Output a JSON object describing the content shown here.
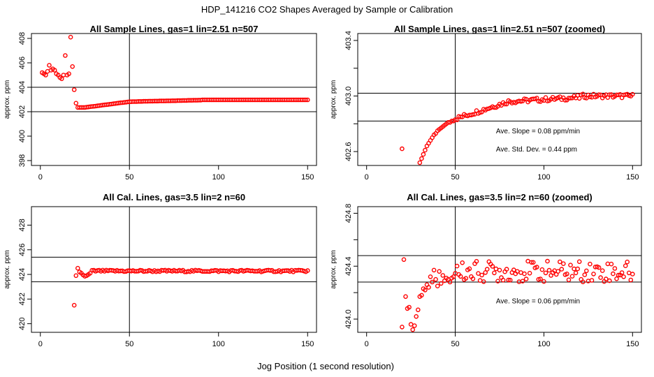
{
  "figure": {
    "title": "HDP_141216  CO2 Shapes Averaged by Sample or Calibration",
    "xlabel": "Jog Position (1 second resolution)"
  },
  "colors": {
    "points": "#ff0000",
    "lines": "#000000",
    "background": "#ffffff"
  },
  "chart_data": [
    {
      "type": "scatter",
      "title": "All Sample Lines, gas=1 lin=2.51 n=507",
      "ylabel": "approx. ppm",
      "xlim": [
        -5,
        155
      ],
      "ylim": [
        397.6,
        408.4
      ],
      "xticks": [
        0,
        50,
        100,
        150
      ],
      "yticks": [
        398,
        400,
        402,
        404,
        406,
        408
      ],
      "vlines": [
        50
      ],
      "hlines": [
        402,
        404
      ],
      "annotations": [],
      "series": [
        {
          "x": [],
          "y": []
        }
      ]
    },
    {
      "type": "scatter",
      "title": "All Sample Lines, gas=1 lin=2.51 n=507 (zoomed)",
      "ylabel": "approx. ppm",
      "xlim": [
        -5,
        155
      ],
      "ylim": [
        402.5,
        403.45
      ],
      "xticks": [
        0,
        50,
        100,
        150
      ],
      "yticks": [
        402.6,
        402.8,
        403.0,
        403.2,
        403.4
      ],
      "ytick_labels": [
        "402.6",
        "",
        "403.0",
        "",
        "403.4"
      ],
      "vlines": [
        50
      ],
      "hlines": [
        402.82,
        403.02
      ],
      "annotations": [
        {
          "text": "Ave. Slope =  0.08  ppm/min",
          "x": 73,
          "y": 402.73
        },
        {
          "text": "Ave. Std. Dev. =  0.44  ppm",
          "x": 73,
          "y": 402.6
        }
      ],
      "series": [
        {
          "x": [],
          "y": []
        }
      ]
    },
    {
      "type": "scatter",
      "title": "All Cal. Lines, gas=3.5 lin=2 n=60",
      "ylabel": "approx. ppm",
      "xlim": [
        -5,
        155
      ],
      "ylim": [
        419.3,
        429.5
      ],
      "xticks": [
        0,
        50,
        100,
        150
      ],
      "yticks": [
        420,
        422,
        424,
        426,
        428
      ],
      "vlines": [
        50
      ],
      "hlines": [
        423.4,
        425.4
      ],
      "annotations": [],
      "series": [
        {
          "x": [],
          "y": []
        }
      ]
    },
    {
      "type": "scatter",
      "title": "All Cal. Lines, gas=3.5 lin=2 n=60 (zoomed)",
      "ylabel": "approx. ppm",
      "xlim": [
        -5,
        155
      ],
      "ylim": [
        423.9,
        424.85
      ],
      "xticks": [
        0,
        50,
        100,
        150
      ],
      "yticks": [
        424.0,
        424.2,
        424.4,
        424.6,
        424.8
      ],
      "ytick_labels": [
        "424.0",
        "",
        "424.4",
        "",
        "424.8"
      ],
      "vlines": [
        50
      ],
      "hlines": [
        424.28,
        424.48
      ],
      "annotations": [
        {
          "text": "Ave. Slope =  0.06  ppm/min",
          "x": 73,
          "y": 424.12
        }
      ],
      "series": [
        {
          "x": [],
          "y": []
        }
      ]
    }
  ]
}
